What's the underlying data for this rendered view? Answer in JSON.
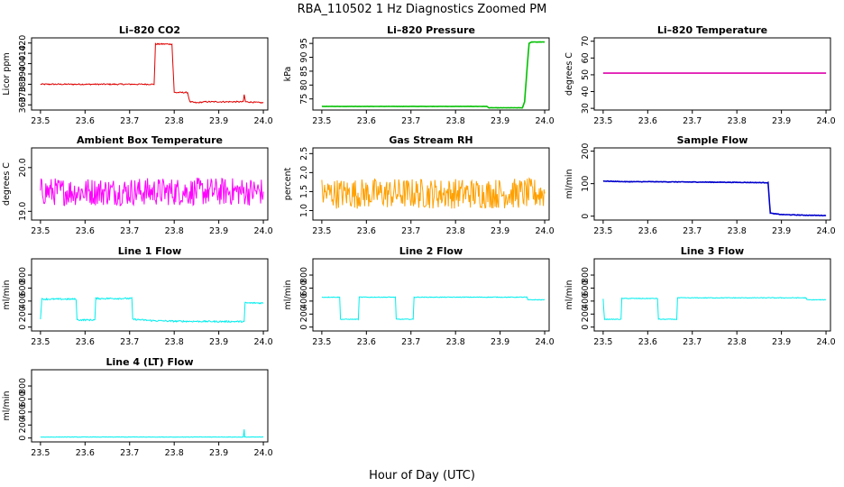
{
  "figure": {
    "title": "RBA_110502  1 Hz Diagnostics Zoomed PM",
    "xlabel": "Hour of Day (UTC)"
  },
  "chart_data": [
    {
      "type": "line",
      "title": "Li–820 CO2",
      "xlabel": "",
      "ylabel": "Licor ppm",
      "color": "#e00000",
      "xlim": [
        23.48,
        24.01
      ],
      "ylim": [
        355,
        425
      ],
      "xticks": [
        "23.5",
        "23.6",
        "23.7",
        "23.8",
        "23.9",
        "24.0"
      ],
      "yticks": [
        "360",
        "370",
        "380",
        "390",
        "400",
        "410",
        "420"
      ],
      "x": [
        23.5,
        23.55,
        23.6,
        23.65,
        23.7,
        23.75,
        23.755,
        23.758,
        23.78,
        23.795,
        23.8,
        23.82,
        23.83,
        23.835,
        23.85,
        23.87,
        23.9,
        23.94,
        23.955,
        23.957,
        23.96,
        24.0
      ],
      "y": [
        380,
        380,
        380,
        380,
        380,
        380,
        380,
        419,
        419,
        419,
        372,
        372,
        372,
        363,
        362,
        363,
        363,
        363,
        363,
        370,
        363,
        362
      ],
      "noise": 0.6
    },
    {
      "type": "line",
      "title": "Li–820 Pressure",
      "xlabel": "",
      "ylabel": "kPa",
      "color": "#00c000",
      "xlim": [
        23.48,
        24.01
      ],
      "ylim": [
        71,
        97
      ],
      "xticks": [
        "23.5",
        "23.6",
        "23.7",
        "23.8",
        "23.9",
        "24.0"
      ],
      "yticks": [
        "75",
        "80",
        "85",
        "90",
        "95"
      ],
      "x": [
        23.5,
        23.6,
        23.7,
        23.8,
        23.87,
        23.875,
        23.9,
        23.95,
        23.955,
        23.96,
        23.965,
        23.97,
        24.0
      ],
      "y": [
        72.3,
        72.3,
        72.3,
        72.3,
        72.3,
        71.8,
        71.8,
        71.8,
        74,
        85,
        95,
        95.5,
        95.5
      ],
      "noise": 0.05
    },
    {
      "type": "line",
      "title": "Li–820 Temperature",
      "xlabel": "",
      "ylabel": "degrees C",
      "color": "#dd00aa",
      "xlim": [
        23.48,
        24.01
      ],
      "ylim": [
        29,
        72
      ],
      "xticks": [
        "23.5",
        "23.6",
        "23.7",
        "23.8",
        "23.9",
        "24.0"
      ],
      "yticks": [
        "30",
        "40",
        "50",
        "60",
        "70"
      ],
      "x": [
        23.5,
        24.0
      ],
      "y": [
        51,
        51
      ],
      "noise": 0
    },
    {
      "type": "line",
      "title": "Ambient Box Temperature",
      "xlabel": "",
      "ylabel": "degrees C",
      "color": "#ff00ff",
      "xlim": [
        23.48,
        24.01
      ],
      "ylim": [
        18.8,
        20.45
      ],
      "xticks": [
        "23.5",
        "23.6",
        "23.7",
        "23.8",
        "23.9",
        "24.0"
      ],
      "yticks": [
        "19.0",
        "20.0"
      ],
      "x": [
        23.5,
        24.0
      ],
      "y": [
        19.45,
        19.45
      ],
      "noise": 0.32
    },
    {
      "type": "line",
      "title": "Gas Stream RH",
      "xlabel": "",
      "ylabel": "percent",
      "color": "#ffa000",
      "xlim": [
        23.48,
        24.01
      ],
      "ylim": [
        0.75,
        2.65
      ],
      "xticks": [
        "23.5",
        "23.6",
        "23.7",
        "23.8",
        "23.9",
        "24.0"
      ],
      "yticks": [
        "1.0",
        "1.5",
        "2.0",
        "2.5"
      ],
      "x": [
        23.5,
        24.0
      ],
      "y": [
        1.45,
        1.45
      ],
      "noise": 0.4
    },
    {
      "type": "line",
      "title": "Sample Flow",
      "xlabel": "",
      "ylabel": "ml/min",
      "color": "#0000cc",
      "xlim": [
        23.48,
        24.01
      ],
      "ylim": [
        -12,
        210
      ],
      "xticks": [
        "23.5",
        "23.6",
        "23.7",
        "23.8",
        "23.9",
        "24.0"
      ],
      "yticks": [
        "0",
        "100",
        "200"
      ],
      "x": [
        23.5,
        23.55,
        23.6,
        23.7,
        23.8,
        23.87,
        23.875,
        23.88,
        23.9,
        23.95,
        24.0
      ],
      "y": [
        108,
        106,
        106,
        105,
        104,
        103,
        10,
        8,
        5,
        3,
        2
      ],
      "noise": 0.8
    },
    {
      "type": "line",
      "title": "Line 1 Flow",
      "xlabel": "",
      "ylabel": "ml/min",
      "color": "#00eeee",
      "xlim": [
        23.48,
        24.01
      ],
      "ylim": [
        -60,
        1050
      ],
      "xticks": [
        "23.5",
        "23.6",
        "23.7",
        "23.8",
        "23.9",
        "24.0"
      ],
      "yticks": [
        "0",
        "200",
        "400",
        "600",
        "800"
      ],
      "x": [
        23.5,
        23.503,
        23.58,
        23.582,
        23.622,
        23.624,
        23.705,
        23.707,
        23.75,
        23.8,
        23.9,
        23.957,
        23.959,
        24.0
      ],
      "y": [
        130,
        430,
        430,
        110,
        110,
        440,
        440,
        120,
        100,
        90,
        85,
        85,
        370,
        370
      ],
      "noise": 12
    },
    {
      "type": "line",
      "title": "Line 2 Flow",
      "xlabel": "",
      "ylabel": "ml/min",
      "color": "#00eeee",
      "xlim": [
        23.48,
        24.01
      ],
      "ylim": [
        -60,
        1050
      ],
      "xticks": [
        "23.5",
        "23.6",
        "23.7",
        "23.8",
        "23.9",
        "24.0"
      ],
      "yticks": [
        "0",
        "200",
        "400",
        "600",
        "800"
      ],
      "x": [
        23.5,
        23.54,
        23.542,
        23.582,
        23.584,
        23.665,
        23.667,
        23.705,
        23.707,
        23.8,
        23.9,
        23.96,
        23.962,
        24.0
      ],
      "y": [
        460,
        460,
        120,
        120,
        460,
        460,
        120,
        120,
        460,
        460,
        460,
        460,
        420,
        420
      ],
      "noise": 5
    },
    {
      "type": "line",
      "title": "Line 3 Flow",
      "xlabel": "",
      "ylabel": "ml/min",
      "color": "#00eeee",
      "xlim": [
        23.48,
        24.01
      ],
      "ylim": [
        -60,
        1050
      ],
      "xticks": [
        "23.5",
        "23.6",
        "23.7",
        "23.8",
        "23.9",
        "24.0"
      ],
      "yticks": [
        "0",
        "200",
        "400",
        "600",
        "800"
      ],
      "x": [
        23.5,
        23.503,
        23.54,
        23.542,
        23.622,
        23.624,
        23.665,
        23.667,
        23.8,
        23.9,
        23.955,
        23.957,
        24.0
      ],
      "y": [
        430,
        120,
        120,
        440,
        440,
        120,
        120,
        450,
        450,
        450,
        450,
        420,
        420
      ],
      "noise": 5
    },
    {
      "type": "line",
      "title": "Line 4 (LT) Flow",
      "xlabel": "",
      "ylabel": "ml/min",
      "color": "#00eeee",
      "xlim": [
        23.48,
        24.01
      ],
      "ylim": [
        -60,
        1050
      ],
      "xticks": [
        "23.5",
        "23.6",
        "23.7",
        "23.8",
        "23.9",
        "24.0"
      ],
      "yticks": [
        "0",
        "200",
        "400",
        "600",
        "800"
      ],
      "x": [
        23.5,
        23.7,
        23.9,
        23.955,
        23.957,
        23.958,
        23.96,
        24.0
      ],
      "y": [
        15,
        15,
        15,
        15,
        130,
        15,
        15,
        15
      ],
      "noise": 3
    }
  ]
}
